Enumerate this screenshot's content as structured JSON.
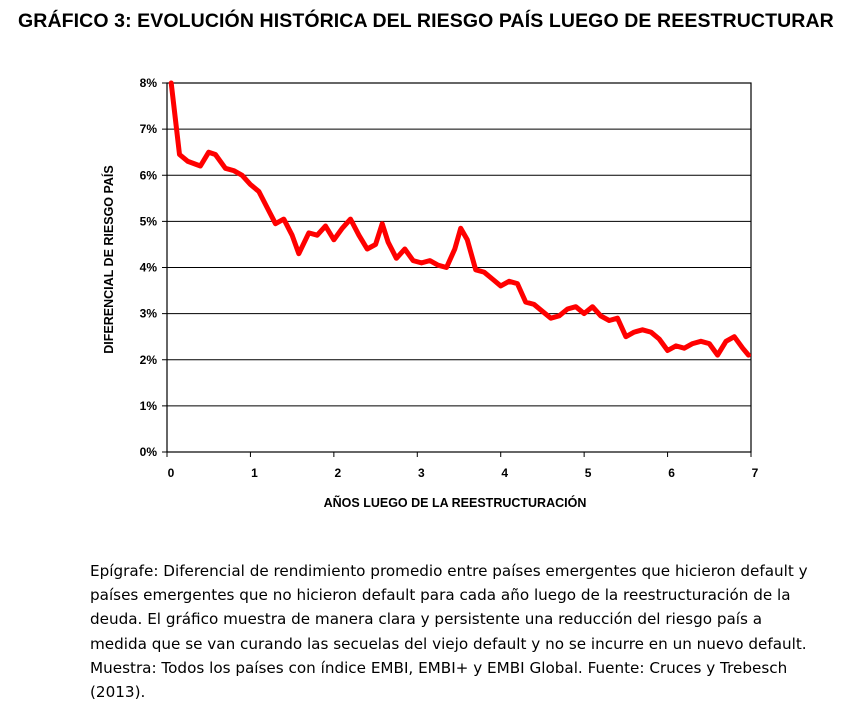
{
  "title": "GRÁFICO 3: EVOLUCIÓN HISTÓRICA DEL RIESGO PAÍS LUEGO DE REESTRUCTURAR",
  "caption": "Epígrafe: Diferencial de rendimiento promedio entre países emergentes que hicieron default y países emergentes que no hicieron default para cada año luego de la reestructuración de la deuda. El gráfico muestra de manera clara y persistente una reducción del riesgo país a medida que se van curando las secuelas del viejo default y no se incurre en un nuevo default. Muestra: Todos los países con índice EMBI, EMBI+ y EMBI Global. Fuente: Cruces y Trebesch (2013).",
  "chart_data": {
    "type": "line",
    "title": "",
    "xlabel": "AÑOS LUEGO DE LA REESTRUCTURACIÓN",
    "ylabel": "DIFERENCIAL DE RIESGO PAÍS",
    "xlim": [
      0,
      7
    ],
    "ylim": [
      0,
      8
    ],
    "x_ticks": [
      0,
      1,
      2,
      3,
      4,
      5,
      6,
      7
    ],
    "x_tick_labels": [
      "0",
      "1",
      "2",
      "3",
      "4",
      "5",
      "6",
      "7"
    ],
    "y_ticks": [
      0,
      1,
      2,
      3,
      4,
      5,
      6,
      7,
      8
    ],
    "y_tick_labels": [
      "0%",
      "1%",
      "2%",
      "3%",
      "4%",
      "5%",
      "6%",
      "7%",
      "8%"
    ],
    "grid": "horizontal",
    "line_color": "#ff0000",
    "series": [
      {
        "x": [
          0.05,
          0.15,
          0.25,
          0.4,
          0.5,
          0.58,
          0.7,
          0.8,
          0.9,
          1.0,
          1.1,
          1.2,
          1.3,
          1.4,
          1.5,
          1.58,
          1.7,
          1.8,
          1.9,
          2.0,
          2.1,
          2.2,
          2.3,
          2.4,
          2.5,
          2.58,
          2.65,
          2.75,
          2.85,
          2.95,
          3.05,
          3.15,
          3.25,
          3.35,
          3.45,
          3.52,
          3.6,
          3.7,
          3.8,
          3.9,
          4.0,
          4.1,
          4.2,
          4.3,
          4.4,
          4.5,
          4.6,
          4.7,
          4.8,
          4.9,
          5.0,
          5.1,
          5.2,
          5.3,
          5.4,
          5.5,
          5.6,
          5.7,
          5.8,
          5.9,
          6.0,
          6.1,
          6.2,
          6.3,
          6.4,
          6.5,
          6.6,
          6.7,
          6.8,
          6.9,
          6.97
        ],
        "y": [
          8.0,
          6.45,
          6.3,
          6.2,
          6.5,
          6.45,
          6.15,
          6.1,
          6.0,
          5.8,
          5.65,
          5.3,
          4.95,
          5.05,
          4.7,
          4.3,
          4.75,
          4.7,
          4.9,
          4.6,
          4.85,
          5.05,
          4.7,
          4.4,
          4.5,
          4.95,
          4.55,
          4.2,
          4.4,
          4.15,
          4.1,
          4.15,
          4.05,
          4.0,
          4.4,
          4.85,
          4.6,
          3.95,
          3.9,
          3.75,
          3.6,
          3.7,
          3.65,
          3.25,
          3.2,
          3.05,
          2.9,
          2.95,
          3.1,
          3.15,
          3.0,
          3.15,
          2.95,
          2.85,
          2.9,
          2.5,
          2.6,
          2.65,
          2.6,
          2.45,
          2.2,
          2.3,
          2.25,
          2.35,
          2.4,
          2.35,
          2.1,
          2.4,
          2.5,
          2.25,
          2.1
        ]
      }
    ]
  }
}
